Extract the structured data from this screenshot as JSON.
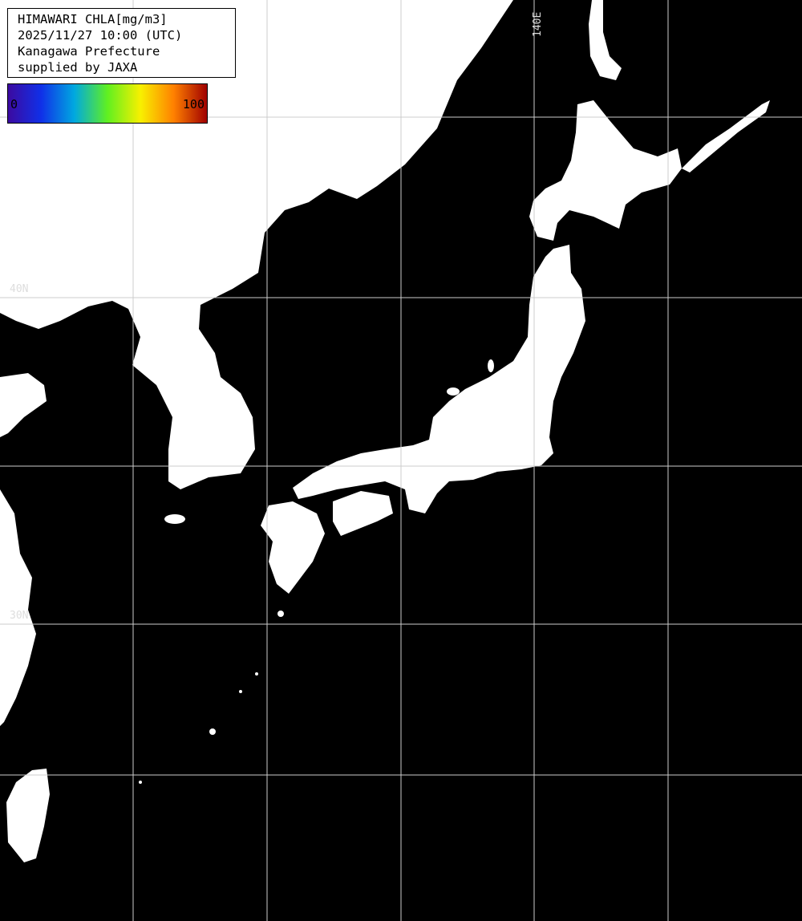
{
  "title": "HIMAWARI CHLA[mg/m3]",
  "datetime": "2025/11/27 10:00 (UTC)",
  "region": "Kanagawa Prefecture",
  "credit": "supplied by JAXA",
  "colorbar": {
    "min_label": "0",
    "max_label": "100",
    "colors": [
      "#3c0aa0",
      "#1030e8",
      "#00a8e0",
      "#60f020",
      "#f8f000",
      "#ff8000",
      "#a00000"
    ]
  },
  "grid_labels": {
    "lat_40": "40N",
    "lat_30": "30N",
    "lon_140": "140E"
  },
  "map_colors": {
    "ocean": "#000000",
    "land": "#ffffff",
    "grid": "#cccccc"
  }
}
